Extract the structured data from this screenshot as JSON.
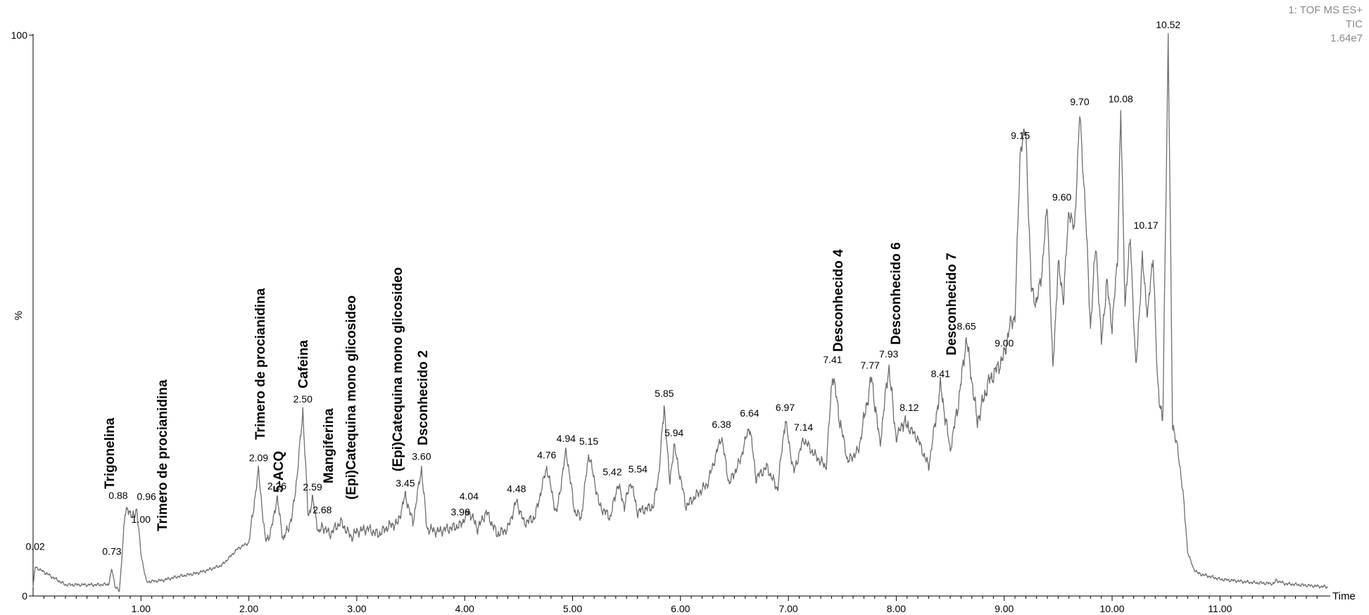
{
  "header": {
    "experiment": "1: TOF MS ES+",
    "trace": "TIC",
    "intensity": "1.64e7"
  },
  "chart_data": {
    "type": "line",
    "title": "",
    "xlabel": "Time",
    "ylabel": "%",
    "xlim": [
      0,
      12.0
    ],
    "ylim": [
      0,
      100
    ],
    "x_ticks": [
      "1.00",
      "2.00",
      "3.00",
      "4.00",
      "5.00",
      "6.00",
      "7.00",
      "8.00",
      "9.00",
      "10.00",
      "11.00"
    ],
    "y_ticks": [
      "0",
      "%",
      "100"
    ],
    "series": [
      {
        "x": [
          0.0,
          0.02,
          0.3,
          0.6,
          0.7,
          0.73,
          0.76,
          0.8,
          0.85,
          0.88,
          0.92,
          0.96,
          1.0,
          1.05,
          1.2,
          1.35,
          1.5,
          1.6,
          1.75,
          1.9,
          2.0,
          2.09,
          2.15,
          2.2,
          2.26,
          2.32,
          2.4,
          2.45,
          2.5,
          2.55,
          2.59,
          2.65,
          2.68,
          2.75,
          2.85,
          2.95,
          3.0,
          3.1,
          3.2,
          3.3,
          3.38,
          3.45,
          3.52,
          3.6,
          3.65,
          3.75,
          3.85,
          3.96,
          4.04,
          4.12,
          4.2,
          4.3,
          4.4,
          4.48,
          4.55,
          4.65,
          4.76,
          4.85,
          4.94,
          5.02,
          5.08,
          5.15,
          5.25,
          5.35,
          5.42,
          5.48,
          5.54,
          5.6,
          5.75,
          5.8,
          5.85,
          5.9,
          5.94,
          6.05,
          6.15,
          6.25,
          6.38,
          6.45,
          6.55,
          6.64,
          6.7,
          6.8,
          6.9,
          6.97,
          7.05,
          7.14,
          7.25,
          7.35,
          7.41,
          7.47,
          7.55,
          7.65,
          7.77,
          7.85,
          7.93,
          8.0,
          8.06,
          8.12,
          8.2,
          8.3,
          8.41,
          8.5,
          8.58,
          8.65,
          8.75,
          8.85,
          8.95,
          9.0,
          9.05,
          9.1,
          9.15,
          9.2,
          9.25,
          9.3,
          9.35,
          9.4,
          9.45,
          9.5,
          9.55,
          9.6,
          9.65,
          9.7,
          9.75,
          9.8,
          9.85,
          9.9,
          9.95,
          10.0,
          10.05,
          10.08,
          10.12,
          10.17,
          10.22,
          10.28,
          10.33,
          10.38,
          10.42,
          10.47,
          10.52,
          10.56,
          10.6,
          10.65,
          10.7,
          10.75,
          10.8,
          11.0,
          11.3,
          11.5,
          11.52,
          11.6,
          11.8,
          12.0
        ],
        "y": [
          1.5,
          5.2,
          2.0,
          2.0,
          2.1,
          4.8,
          1.8,
          0.8,
          14.2,
          15.8,
          13.8,
          15.6,
          7.5,
          2.5,
          2.8,
          3.5,
          4.0,
          4.5,
          5.5,
          8.5,
          9.5,
          22.5,
          10.0,
          11.0,
          17.5,
          10.0,
          14.0,
          22.0,
          33.0,
          14.0,
          17.3,
          11.0,
          12.5,
          11.0,
          13.2,
          10.5,
          11.5,
          12.0,
          11.0,
          12.5,
          13.0,
          18.0,
          13.0,
          22.8,
          12.0,
          11.5,
          12.0,
          12.6,
          15.2,
          12.0,
          15.0,
          11.0,
          12.0,
          17.0,
          13.0,
          14.0,
          23.0,
          14.5,
          26.0,
          15.0,
          14.0,
          25.5,
          16.0,
          14.0,
          20.0,
          16.0,
          20.5,
          15.0,
          16.0,
          22.0,
          34.0,
          20.0,
          27.0,
          16.0,
          18.0,
          20.0,
          28.5,
          20.0,
          24.0,
          30.5,
          21.0,
          23.0,
          19.0,
          31.5,
          22.0,
          28.0,
          25.0,
          23.0,
          40.0,
          32.0,
          24.0,
          26.0,
          39.0,
          27.0,
          41.0,
          28.0,
          31.0,
          30.0,
          28.0,
          23.0,
          37.5,
          26.0,
          35.0,
          46.0,
          31.0,
          38.0,
          41.0,
          43.0,
          48.0,
          50.0,
          80.0,
          83.0,
          55.0,
          52.0,
          58.0,
          70.0,
          40.0,
          59.0,
          53.0,
          69.0,
          65.0,
          86.0,
          70.0,
          48.0,
          63.0,
          45.0,
          56.0,
          48.0,
          60.0,
          86.5,
          52.0,
          64.0,
          40.0,
          60.0,
          50.0,
          61.0,
          38.0,
          31.0,
          100.0,
          31.0,
          27.0,
          20.0,
          8.0,
          5.0,
          4.0,
          3.0,
          2.4,
          2.2,
          2.8,
          2.2,
          1.9,
          1.6
        ]
      }
    ],
    "peak_labels": [
      {
        "x": 0.02,
        "label": "0.02"
      },
      {
        "x": 0.73,
        "label": "0.73"
      },
      {
        "x": 0.88,
        "label": "0.88"
      },
      {
        "x": 0.96,
        "label": "0.96"
      },
      {
        "x": 1.0,
        "label": "1.00"
      },
      {
        "x": 2.09,
        "label": "2.09"
      },
      {
        "x": 2.26,
        "label": "2.26"
      },
      {
        "x": 2.5,
        "label": "2.50"
      },
      {
        "x": 2.59,
        "label": "2.59"
      },
      {
        "x": 2.68,
        "label": "2.68"
      },
      {
        "x": 3.45,
        "label": "3.45"
      },
      {
        "x": 3.6,
        "label": "3.60"
      },
      {
        "x": 3.96,
        "label": "3.96"
      },
      {
        "x": 4.04,
        "label": "4.04"
      },
      {
        "x": 4.48,
        "label": "4.48"
      },
      {
        "x": 4.76,
        "label": "4.76"
      },
      {
        "x": 4.94,
        "label": "4.94"
      },
      {
        "x": 5.15,
        "label": "5.15"
      },
      {
        "x": 5.42,
        "label": "5.42"
      },
      {
        "x": 5.54,
        "label": "5.54"
      },
      {
        "x": 5.85,
        "label": "5.85"
      },
      {
        "x": 5.94,
        "label": "5.94"
      },
      {
        "x": 6.38,
        "label": "6.38"
      },
      {
        "x": 6.64,
        "label": "6.64"
      },
      {
        "x": 6.97,
        "label": "6.97"
      },
      {
        "x": 7.14,
        "label": "7.14"
      },
      {
        "x": 7.41,
        "label": "7.41"
      },
      {
        "x": 7.77,
        "label": "7.77"
      },
      {
        "x": 7.93,
        "label": "7.93"
      },
      {
        "x": 8.12,
        "label": "8.12"
      },
      {
        "x": 8.41,
        "label": "8.41"
      },
      {
        "x": 8.65,
        "label": "8.65"
      },
      {
        "x": 9.0,
        "label": "9.00"
      },
      {
        "x": 9.15,
        "label": "9.15"
      },
      {
        "x": 9.6,
        "label": "9.60"
      },
      {
        "x": 9.7,
        "label": "9.70"
      },
      {
        "x": 10.08,
        "label": "10.08"
      },
      {
        "x": 10.17,
        "label": "10.17"
      },
      {
        "x": 10.52,
        "label": "10.52"
      }
    ],
    "compound_labels": [
      "Trigonelina",
      "Trimero de procianidina",
      "Trimero de procianidina",
      "5-ACQ",
      "Cafeina",
      "Mangiferina",
      "(Epi)Catequina mono glicosideo",
      "(Epi)Catequina mono glicosideo",
      "Dsconhecido 2",
      "Desconhecido 4",
      "Desconhecido 6",
      "Desconhecido 7"
    ]
  }
}
